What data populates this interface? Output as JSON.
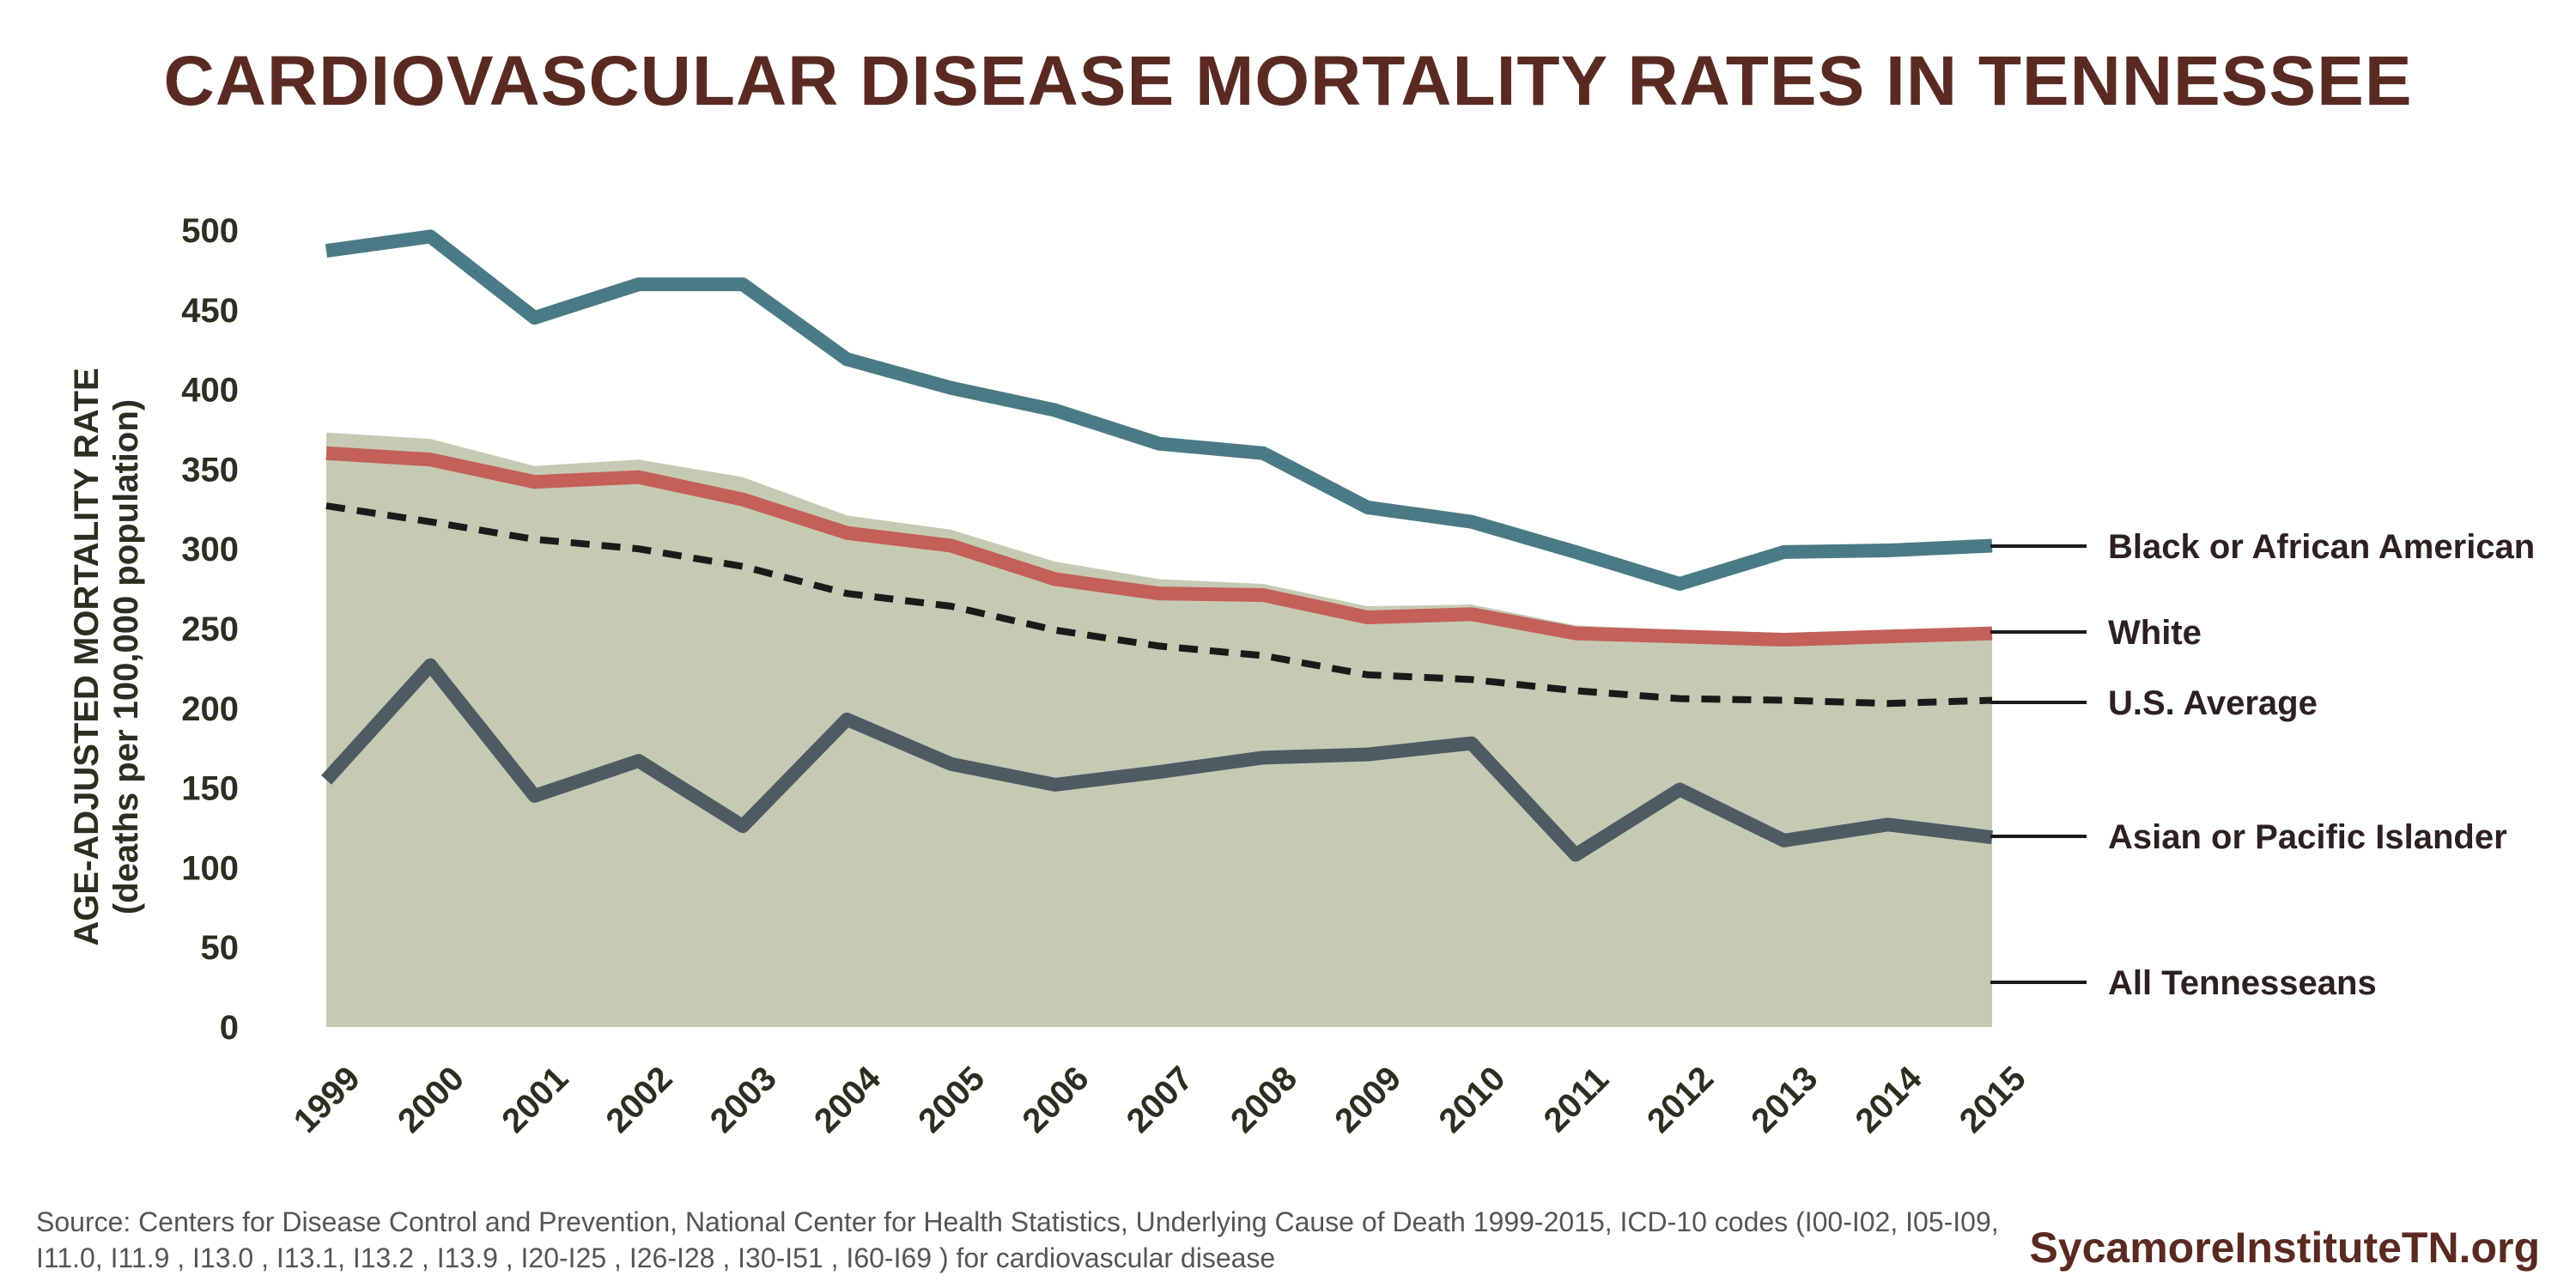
{
  "chart_data": {
    "type": "line",
    "title": "CARDIOVASCULAR DISEASE MORTALITY RATES IN TENNESSEE",
    "ylabel_line1": "AGE-ADJUSTED MORTALITY RATE",
    "ylabel_line2": "(deaths per 100,000 population)",
    "xlabel": "",
    "ylim": [
      0,
      500
    ],
    "yticks": [
      0,
      50,
      100,
      150,
      200,
      250,
      300,
      350,
      400,
      450,
      500
    ],
    "categories": [
      "1999",
      "2000",
      "2001",
      "2002",
      "2003",
      "2004",
      "2005",
      "2006",
      "2007",
      "2008",
      "2009",
      "2010",
      "2011",
      "2012",
      "2013",
      "2014",
      "2015"
    ],
    "series": [
      {
        "name": "Black or African American",
        "style": "line",
        "color": "#4a7a85",
        "values": [
          487,
          496,
          445,
          466,
          466,
          419,
          401,
          387,
          366,
          360,
          326,
          317,
          298,
          278,
          298,
          299,
          302
        ]
      },
      {
        "name": "White",
        "style": "line",
        "color": "#c4605a",
        "values": [
          360,
          356,
          342,
          345,
          331,
          310,
          302,
          281,
          272,
          271,
          257,
          259,
          247,
          245,
          243,
          245,
          247
        ]
      },
      {
        "name": "U.S. Average",
        "style": "dashed",
        "color": "#1a1a1a",
        "values": [
          327,
          317,
          306,
          300,
          289,
          272,
          264,
          249,
          239,
          233,
          221,
          218,
          211,
          206,
          205,
          203,
          205
        ]
      },
      {
        "name": "Asian or Pacific Islander",
        "style": "line",
        "color": "#4f5b63",
        "values": [
          155,
          227,
          145,
          167,
          126,
          193,
          165,
          152,
          160,
          169,
          171,
          178,
          108,
          149,
          117,
          127,
          119
        ]
      },
      {
        "name": "All Tennesseans",
        "style": "area",
        "color": "#c5cab4",
        "values": [
          373,
          369,
          352,
          356,
          345,
          321,
          312,
          292,
          281,
          278,
          264,
          265,
          252,
          249,
          247,
          249,
          250
        ]
      }
    ]
  },
  "source": "Source: Centers for Disease Control and Prevention, National Center for Health Statistics, Underlying Cause of Death 1999-2015, ICD-10 codes (I00-I02, I05-I09, I11.0, I11.9 , I13.0 , I13.1, I13.2 , I13.9 , I20-I25 , I26-I28 , I30-I51 , I60-I69 ) for cardiovascular disease",
  "brand": "SycamoreInstituteTN.org"
}
